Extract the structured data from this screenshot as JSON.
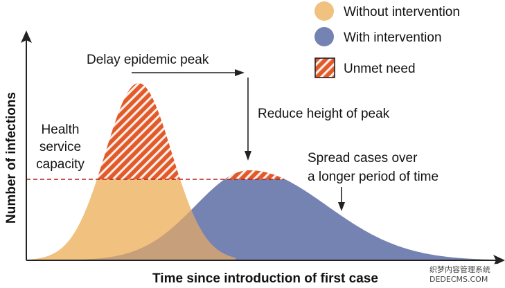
{
  "colors": {
    "without": "#F0C17F",
    "with": "#7583B2",
    "overlap": "#C7A07B",
    "unmet_fill": "#E25A2A",
    "unmet_stripe": "#ffffff",
    "capacity_line": "#B11E1E",
    "axis": "#222222",
    "text": "#111111"
  },
  "axes": {
    "x_label": "Time since introduction of first case",
    "y_label": "Number of infections"
  },
  "legend": [
    {
      "label": "Without intervention",
      "swatch": "circle",
      "color": "#F0C17F"
    },
    {
      "label": "With intervention",
      "swatch": "circle",
      "color": "#7583B2"
    },
    {
      "label": "Unmet need",
      "swatch": "hatched-square",
      "color": "#E25A2A"
    }
  ],
  "annotations": {
    "delay_peak": "Delay epidemic peak",
    "reduce_peak": "Reduce height of peak",
    "spread_line1": "Spread cases over",
    "spread_line2": "a longer period of time",
    "capacity_line1": "Health",
    "capacity_line2": "service",
    "capacity_line3": "capacity"
  },
  "watermark": {
    "line1": "织梦内容管理系统",
    "line2": "DEDECMS.COM"
  }
}
